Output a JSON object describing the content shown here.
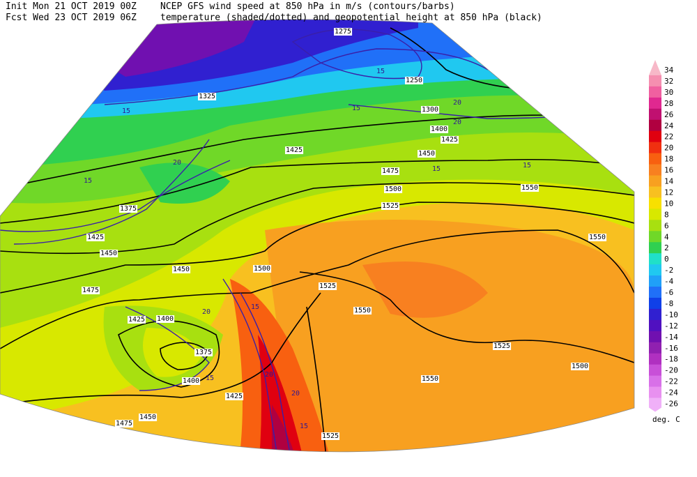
{
  "header": {
    "init": "Init  Mon 21 OCT 2019 00Z",
    "fcst": "Fcst Wed 23 OCT 2019 06Z",
    "title1": "NCEP GFS wind speed at 850 hPa in m/s (contours/barbs)",
    "title2": "temperature (shaded/dotted) and geopotential height at 850 hPa (black)"
  },
  "colorbar": {
    "labels": [
      34,
      32,
      30,
      28,
      26,
      24,
      22,
      20,
      18,
      16,
      14,
      12,
      10,
      8,
      6,
      4,
      2,
      0,
      -2,
      -4,
      -6,
      -8,
      -10,
      -12,
      -14,
      -16,
      -18,
      -20,
      -22,
      -24,
      -26
    ],
    "colors": [
      "#f7b8c8",
      "#f58fb0",
      "#f060a0",
      "#e02890",
      "#c01070",
      "#b00040",
      "#e00010",
      "#f03010",
      "#f86010",
      "#f88020",
      "#f8a020",
      "#f8c020",
      "#f8e000",
      "#d8e800",
      "#a8e010",
      "#70d828",
      "#30d050",
      "#20e0c8",
      "#20c8f0",
      "#20a0f8",
      "#2070f8",
      "#1040e8",
      "#3020d0",
      "#5010c0",
      "#7010b0",
      "#9020b0",
      "#b030c0",
      "#c850d8",
      "#d870e8",
      "#e890f0",
      "#f0b0f8"
    ],
    "unit": "deg. C"
  },
  "height_labels": [
    1275,
    1250,
    1300,
    1400,
    1425,
    1450,
    1475,
    1500,
    1525,
    1550,
    1550,
    1500,
    1525,
    1550,
    1525,
    1500,
    1450,
    1475,
    1425,
    1325,
    1425,
    1450,
    1400,
    1425,
    1375,
    1400,
    1425,
    1450,
    1475,
    1525,
    1550,
    1375
  ],
  "wind_labels": [
    15,
    20,
    15,
    20,
    15,
    20,
    15,
    15,
    20,
    15,
    20,
    15,
    15,
    20,
    15
  ]
}
